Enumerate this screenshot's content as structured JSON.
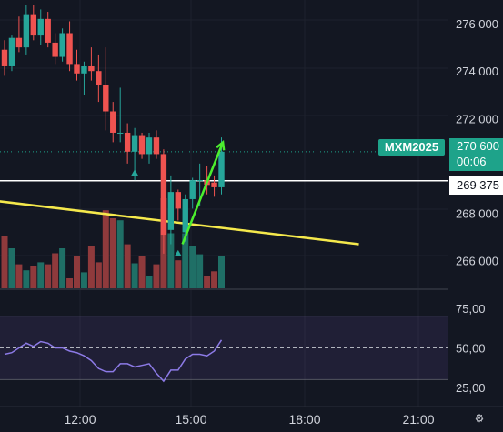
{
  "symbol": "MXM2025",
  "last_price": "270 600",
  "countdown": "00:06",
  "horizontal_line_price": "269 375",
  "price_axis_labels": [
    "276 000",
    "274 000",
    "272 000",
    "268 000",
    "266 000"
  ],
  "oscillator_axis_labels": [
    "75,00",
    "50,00",
    "25,00"
  ],
  "time_axis_labels": [
    "12:00",
    "15:00",
    "18:00",
    "21:00"
  ],
  "icons": {
    "settings": "gear-icon"
  },
  "colors": {
    "up": "#26a69a",
    "down": "#ef5350",
    "trendline": "#f5e94c",
    "arrow": "#4cef2e",
    "rsi": "#8c7ae6",
    "badge": "#1ea38a"
  },
  "chart_data": {
    "type": "candlestick",
    "candles": [
      {
        "o": 274900,
        "h": 275300,
        "l": 273800,
        "c": 274200
      },
      {
        "o": 274200,
        "h": 275500,
        "l": 274000,
        "c": 275400
      },
      {
        "o": 275400,
        "h": 276300,
        "l": 274800,
        "c": 275000
      },
      {
        "o": 275000,
        "h": 276800,
        "l": 274700,
        "c": 276400
      },
      {
        "o": 276400,
        "h": 276800,
        "l": 275300,
        "c": 275500
      },
      {
        "o": 275500,
        "h": 276600,
        "l": 275100,
        "c": 276200
      },
      {
        "o": 276200,
        "h": 276500,
        "l": 275000,
        "c": 275200
      },
      {
        "o": 275200,
        "h": 275600,
        "l": 274300,
        "c": 274600
      },
      {
        "o": 274600,
        "h": 275800,
        "l": 274400,
        "c": 275600
      },
      {
        "o": 275600,
        "h": 276100,
        "l": 274000,
        "c": 274300
      },
      {
        "o": 274300,
        "h": 274900,
        "l": 273600,
        "c": 273900
      },
      {
        "o": 273900,
        "h": 274400,
        "l": 273000,
        "c": 274200
      },
      {
        "o": 274200,
        "h": 275000,
        "l": 273600,
        "c": 274000
      },
      {
        "o": 274000,
        "h": 274700,
        "l": 272700,
        "c": 273400
      },
      {
        "o": 273400,
        "h": 275000,
        "l": 271500,
        "c": 272300
      },
      {
        "o": 272300,
        "h": 272700,
        "l": 271000,
        "c": 271400
      },
      {
        "o": 271400,
        "h": 273300,
        "l": 271000,
        "c": 271400
      },
      {
        "o": 271400,
        "h": 271800,
        "l": 270100,
        "c": 270600
      },
      {
        "o": 270600,
        "h": 271600,
        "l": 269400,
        "c": 271300
      },
      {
        "o": 271300,
        "h": 271400,
        "l": 270300,
        "c": 270500
      },
      {
        "o": 270500,
        "h": 271400,
        "l": 270100,
        "c": 271200
      },
      {
        "o": 271200,
        "h": 271500,
        "l": 270300,
        "c": 270500
      },
      {
        "o": 270500,
        "h": 270700,
        "l": 266300,
        "c": 267100
      },
      {
        "o": 267300,
        "h": 269600,
        "l": 266700,
        "c": 268900
      },
      {
        "o": 268900,
        "h": 269000,
        "l": 267700,
        "c": 268200
      },
      {
        "o": 267200,
        "h": 268800,
        "l": 266800,
        "c": 268600
      },
      {
        "o": 268600,
        "h": 269500,
        "l": 268200,
        "c": 269400
      },
      {
        "o": 269400,
        "h": 270100,
        "l": 268300,
        "c": 269400
      },
      {
        "o": 269400,
        "h": 270000,
        "l": 268800,
        "c": 269200
      },
      {
        "o": 269300,
        "h": 269600,
        "l": 268700,
        "c": 269100
      },
      {
        "o": 269100,
        "h": 271200,
        "l": 268800,
        "c": 270600
      }
    ],
    "volume": [
      52,
      40,
      24,
      18,
      22,
      26,
      24,
      35,
      40,
      10,
      32,
      16,
      42,
      26,
      78,
      70,
      68,
      44,
      25,
      32,
      12,
      24,
      90,
      55,
      28,
      55,
      42,
      34,
      12,
      17,
      32
    ],
    "rsi": [
      46,
      47,
      50,
      53,
      51,
      54,
      53,
      50,
      50,
      48,
      47,
      45,
      42,
      37,
      35,
      35,
      40,
      40,
      38,
      39,
      40,
      34,
      29,
      36,
      36,
      43,
      46,
      46,
      45,
      48,
      55
    ],
    "oscillator_levels": [
      70,
      30
    ],
    "oscillator_midline": 50,
    "price_range": [
      264800,
      277000
    ],
    "rsi_range": [
      13,
      87
    ],
    "trendline": {
      "from": {
        "bar": -6,
        "price": 268700
      },
      "to": {
        "bar": 49,
        "price": 266700
      }
    },
    "arrow": {
      "from": {
        "bar": 24.6,
        "price": 266700
      },
      "to": {
        "bar": 30.2,
        "price": 271000
      }
    },
    "up_markers": [
      {
        "bar": 18,
        "price": 269700
      },
      {
        "bar": 24,
        "price": 266300
      }
    ]
  }
}
